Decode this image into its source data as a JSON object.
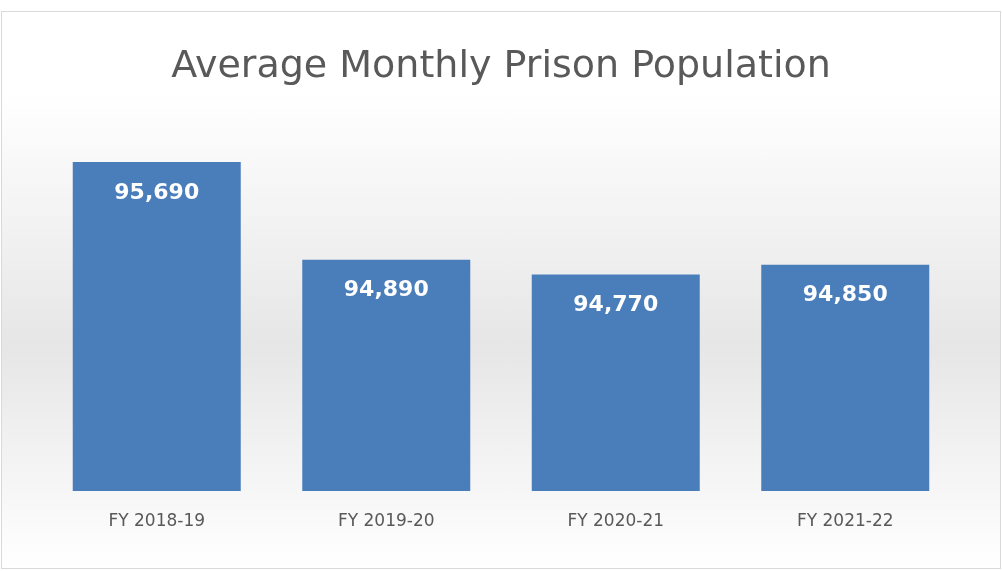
{
  "chart_data": {
    "type": "bar",
    "title": "Average Monthly Prison Population",
    "categories": [
      "FY 2018-19",
      "FY 2019-20",
      "FY 2020-21",
      "FY 2021-22"
    ],
    "values": [
      95690,
      94890,
      94770,
      94850
    ],
    "color": "#4a7ebb",
    "ylim": [
      93000,
      95690
    ],
    "value_labels": [
      "95,690",
      "94,890",
      "94,770",
      "94,850"
    ]
  }
}
